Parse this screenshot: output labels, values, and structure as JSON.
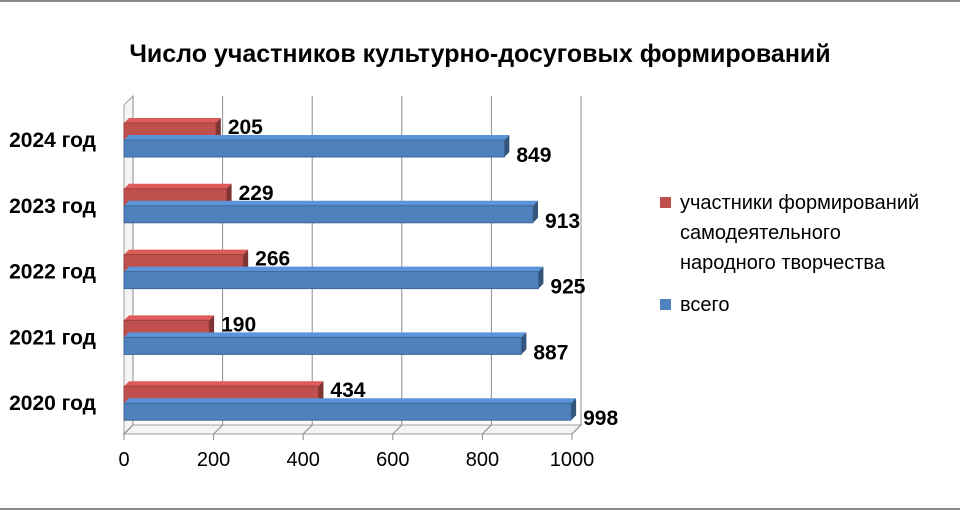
{
  "chart_data": {
    "type": "bar",
    "orientation": "horizontal",
    "style": "3d",
    "title": "Число участников культурно-досуговых формирований",
    "categories": [
      "2024 год",
      "2023 год",
      "2022 год",
      "2021 год",
      "2020 год"
    ],
    "series": [
      {
        "name": "участники формирований самодеятельного народного творчества",
        "legend_lines": [
          "участники формирований",
          "самодеятельного",
          "народного творчества"
        ],
        "color": "#C0504D",
        "values": [
          205,
          229,
          266,
          190,
          434
        ]
      },
      {
        "name": "всего",
        "legend_lines": [
          "всего"
        ],
        "color": "#4F81BD",
        "values": [
          849,
          913,
          925,
          887,
          998
        ]
      }
    ],
    "xlim": [
      0,
      1000
    ],
    "x_ticks": [
      0,
      200,
      400,
      600,
      800,
      1000
    ],
    "grid": true,
    "legend_position": "right"
  }
}
